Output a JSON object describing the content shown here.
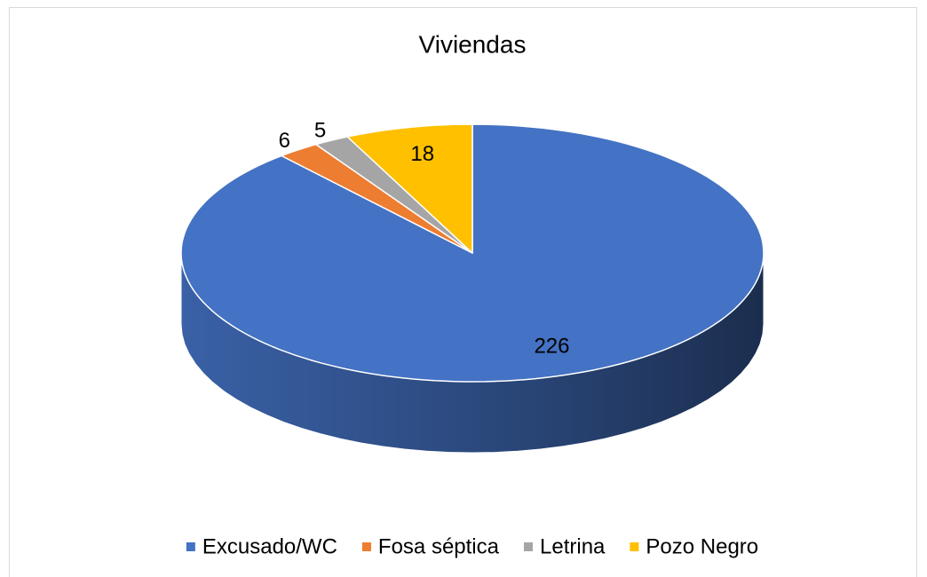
{
  "chart_data": {
    "type": "pie",
    "title": "Viviendas",
    "categories": [
      "Excusado/WC",
      "Fosa séptica",
      "Letrina",
      "Pozo Negro"
    ],
    "values": [
      226,
      6,
      5,
      18
    ],
    "colors": [
      "#4472c4",
      "#ed7d31",
      "#a5a5a5",
      "#ffc000"
    ],
    "legend": "bottom"
  }
}
